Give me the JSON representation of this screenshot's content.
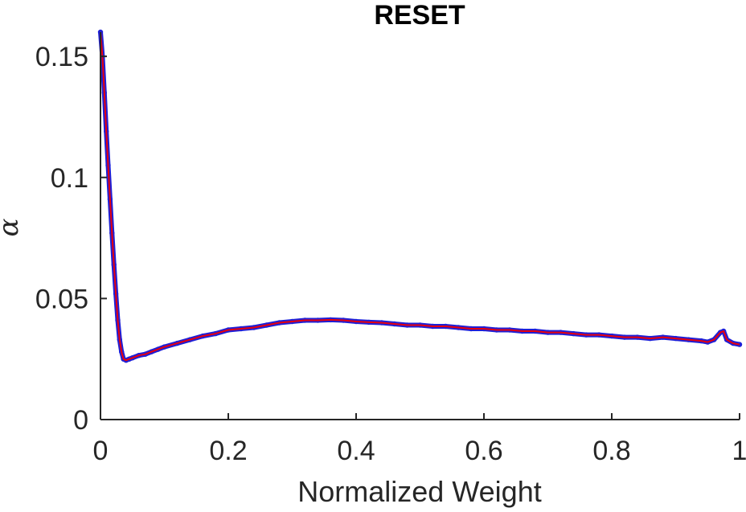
{
  "chart_data": {
    "type": "line",
    "title": "RESET",
    "xlabel": "Normalized Weight",
    "ylabel": "α",
    "xlim": [
      0,
      1
    ],
    "ylim": [
      0,
      0.16
    ],
    "xticks": [
      0,
      0.2,
      0.4,
      0.6,
      0.8,
      1
    ],
    "xtick_labels": [
      "0",
      "0.2",
      "0.4",
      "0.6",
      "0.8",
      "1"
    ],
    "yticks": [
      0,
      0.05,
      0.1,
      0.15
    ],
    "ytick_labels": [
      "0",
      "0.05",
      "0.1",
      "0.15"
    ],
    "grid": false,
    "series": [
      {
        "style": "line with circle markers",
        "line_color": "#e8000b",
        "marker_color": "#1f1fd6",
        "x": [
          0.0,
          0.003,
          0.006,
          0.009,
          0.012,
          0.015,
          0.018,
          0.021,
          0.024,
          0.027,
          0.03,
          0.033,
          0.036,
          0.04,
          0.045,
          0.05,
          0.06,
          0.07,
          0.08,
          0.09,
          0.1,
          0.12,
          0.14,
          0.16,
          0.18,
          0.2,
          0.22,
          0.24,
          0.26,
          0.28,
          0.3,
          0.32,
          0.34,
          0.36,
          0.38,
          0.4,
          0.42,
          0.44,
          0.46,
          0.48,
          0.5,
          0.52,
          0.54,
          0.56,
          0.58,
          0.6,
          0.62,
          0.64,
          0.66,
          0.68,
          0.7,
          0.72,
          0.74,
          0.76,
          0.78,
          0.8,
          0.82,
          0.84,
          0.86,
          0.88,
          0.9,
          0.92,
          0.94,
          0.95,
          0.96,
          0.97,
          0.975,
          0.98,
          0.99,
          1.0
        ],
        "y": [
          0.16,
          0.15,
          0.135,
          0.119,
          0.105,
          0.091,
          0.077,
          0.064,
          0.052,
          0.041,
          0.033,
          0.028,
          0.025,
          0.0245,
          0.025,
          0.0255,
          0.0265,
          0.027,
          0.028,
          0.029,
          0.03,
          0.0315,
          0.033,
          0.0345,
          0.0355,
          0.037,
          0.0375,
          0.038,
          0.039,
          0.04,
          0.0405,
          0.041,
          0.041,
          0.0412,
          0.041,
          0.0405,
          0.0402,
          0.04,
          0.0395,
          0.039,
          0.039,
          0.0385,
          0.0385,
          0.038,
          0.0375,
          0.0375,
          0.037,
          0.037,
          0.0365,
          0.0365,
          0.036,
          0.036,
          0.0355,
          0.035,
          0.035,
          0.0345,
          0.034,
          0.034,
          0.0335,
          0.034,
          0.0335,
          0.033,
          0.0325,
          0.032,
          0.033,
          0.036,
          0.0365,
          0.033,
          0.0315,
          0.031
        ]
      }
    ]
  }
}
